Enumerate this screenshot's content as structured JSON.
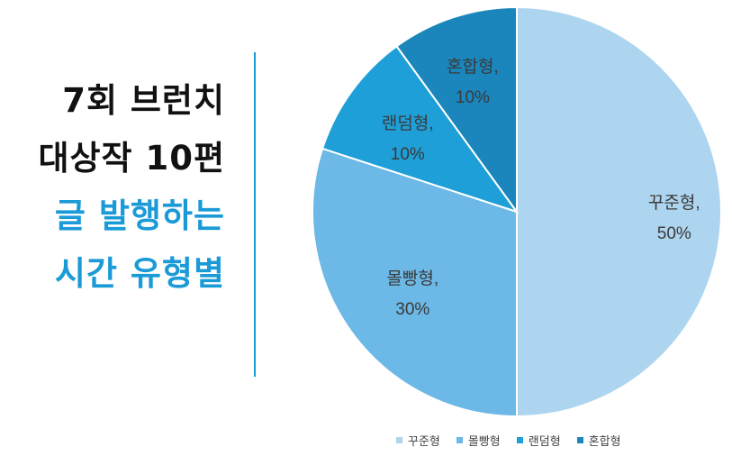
{
  "heading": {
    "lines": [
      "7회 브런치",
      "대상작 10편",
      "글 발행하는",
      "시간 유형별"
    ],
    "colors": [
      "#111111",
      "#111111",
      "#1a9ad6",
      "#1a9ad6"
    ]
  },
  "chart_data": {
    "type": "pie",
    "title": "",
    "categories": [
      "꾸준형",
      "몰빵형",
      "랜덤형",
      "혼합형"
    ],
    "values": [
      50,
      30,
      10,
      10
    ],
    "unit": "%",
    "labels": [
      {
        "name": "꾸준형,",
        "pct": "50%"
      },
      {
        "name": "몰빵형,",
        "pct": "30%"
      },
      {
        "name": "랜덤형,",
        "pct": "10%"
      },
      {
        "name": "혼합형,",
        "pct": "10%"
      }
    ],
    "colors": [
      "#aed5ef",
      "#6cb8e6",
      "#1f9fd8",
      "#1a86bb"
    ],
    "legend_position": "bottom"
  }
}
